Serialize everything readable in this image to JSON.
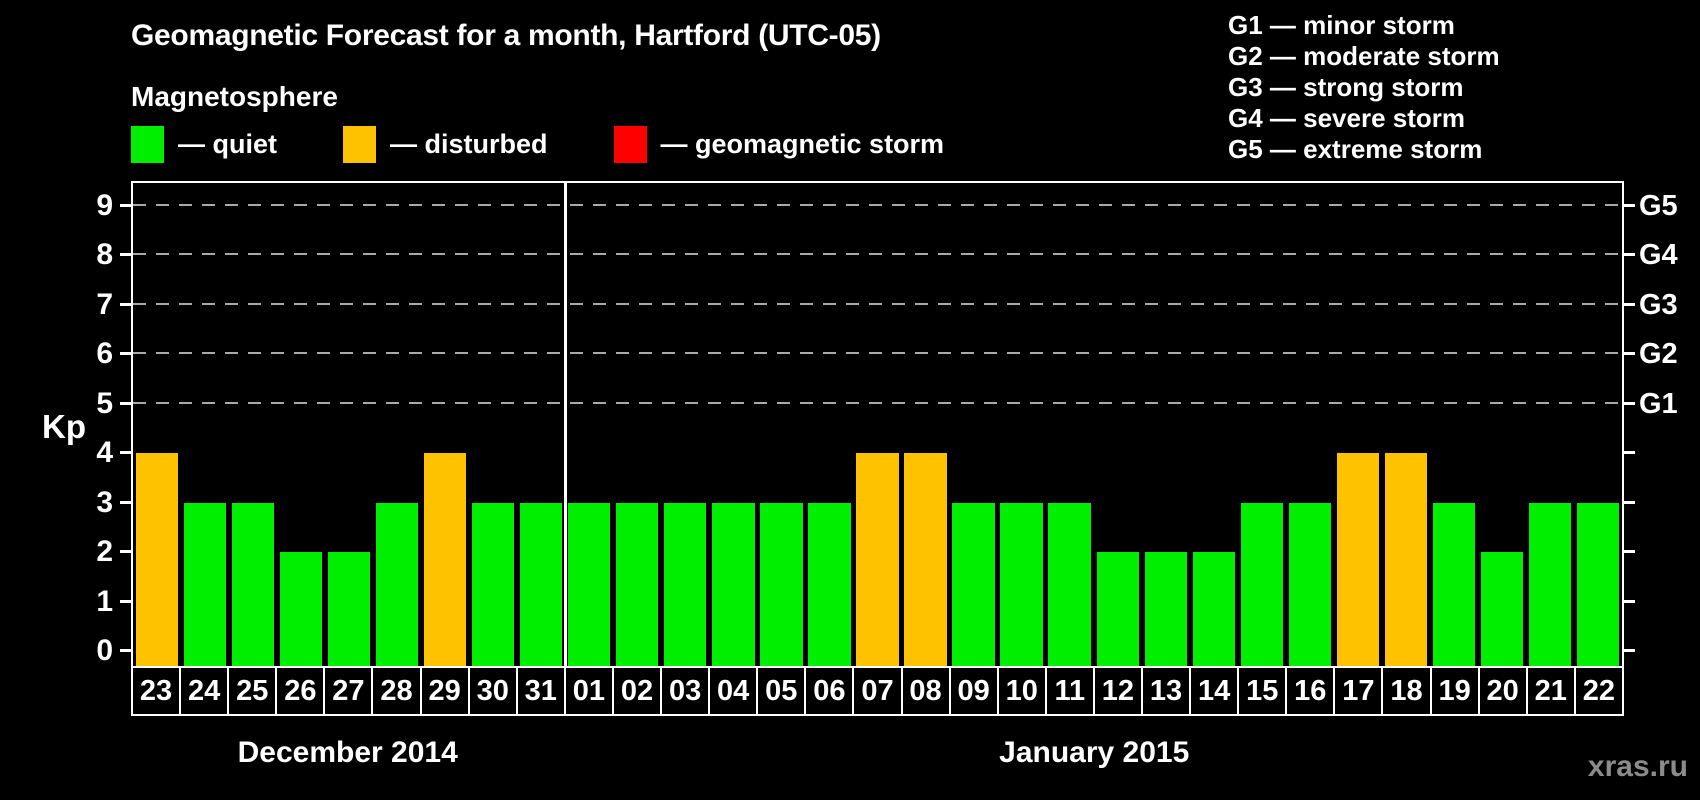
{
  "chart_data": {
    "type": "bar",
    "title": "Geomagnetic Forecast for a month, Hartford (UTC-05)",
    "subtitle": "Magnetosphere",
    "ylabel": "Kp",
    "ylim": [
      0,
      9
    ],
    "yticks": [
      0,
      1,
      2,
      3,
      4,
      5,
      6,
      7,
      8,
      9
    ],
    "gridlines_at": [
      5,
      6,
      7,
      8,
      9
    ],
    "grid_style": "dashed horizontal lines only at storm levels Kp 5-9",
    "legend": [
      {
        "status": "quiet",
        "label": "— quiet"
      },
      {
        "status": "disturbed",
        "label": "— disturbed"
      },
      {
        "status": "storm",
        "label": "— geomagnetic storm"
      }
    ],
    "g_scale_legend": [
      "G1 — minor storm",
      "G2 — moderate storm",
      "G3 — strong storm",
      "G4 — severe storm",
      "G5 — extreme storm"
    ],
    "right_axis": [
      {
        "kp": 5,
        "label": "G1"
      },
      {
        "kp": 6,
        "label": "G2"
      },
      {
        "kp": 7,
        "label": "G3"
      },
      {
        "kp": 8,
        "label": "G4"
      },
      {
        "kp": 9,
        "label": "G5"
      }
    ],
    "months": [
      {
        "name": "December 2014",
        "days": [
          {
            "day": "23",
            "kp": 4,
            "status": "disturbed"
          },
          {
            "day": "24",
            "kp": 3,
            "status": "quiet"
          },
          {
            "day": "25",
            "kp": 3,
            "status": "quiet"
          },
          {
            "day": "26",
            "kp": 2,
            "status": "quiet"
          },
          {
            "day": "27",
            "kp": 2,
            "status": "quiet"
          },
          {
            "day": "28",
            "kp": 3,
            "status": "quiet"
          },
          {
            "day": "29",
            "kp": 4,
            "status": "disturbed"
          },
          {
            "day": "30",
            "kp": 3,
            "status": "quiet"
          },
          {
            "day": "31",
            "kp": 3,
            "status": "quiet"
          }
        ]
      },
      {
        "name": "January 2015",
        "days": [
          {
            "day": "01",
            "kp": 3,
            "status": "quiet"
          },
          {
            "day": "02",
            "kp": 3,
            "status": "quiet"
          },
          {
            "day": "03",
            "kp": 3,
            "status": "quiet"
          },
          {
            "day": "04",
            "kp": 3,
            "status": "quiet"
          },
          {
            "day": "05",
            "kp": 3,
            "status": "quiet"
          },
          {
            "day": "06",
            "kp": 3,
            "status": "quiet"
          },
          {
            "day": "07",
            "kp": 4,
            "status": "disturbed"
          },
          {
            "day": "08",
            "kp": 4,
            "status": "disturbed"
          },
          {
            "day": "09",
            "kp": 3,
            "status": "quiet"
          },
          {
            "day": "10",
            "kp": 3,
            "status": "quiet"
          },
          {
            "day": "11",
            "kp": 3,
            "status": "quiet"
          },
          {
            "day": "12",
            "kp": 2,
            "status": "quiet"
          },
          {
            "day": "13",
            "kp": 2,
            "status": "quiet"
          },
          {
            "day": "14",
            "kp": 2,
            "status": "quiet"
          },
          {
            "day": "15",
            "kp": 3,
            "status": "quiet"
          },
          {
            "day": "16",
            "kp": 3,
            "status": "quiet"
          },
          {
            "day": "17",
            "kp": 4,
            "status": "disturbed"
          },
          {
            "day": "18",
            "kp": 4,
            "status": "disturbed"
          },
          {
            "day": "19",
            "kp": 3,
            "status": "quiet"
          },
          {
            "day": "20",
            "kp": 2,
            "status": "quiet"
          },
          {
            "day": "21",
            "kp": 3,
            "status": "quiet"
          },
          {
            "day": "22",
            "kp": 3,
            "status": "quiet"
          }
        ]
      }
    ],
    "watermark": "xras.ru"
  },
  "colors": {
    "background": "#000000",
    "quiet": "#00ef00",
    "disturbed": "#ffc200",
    "storm": "#ff0000",
    "axis": "#ffffff",
    "grid": "#a9a9a9",
    "watermark": "#8c8c8c"
  }
}
